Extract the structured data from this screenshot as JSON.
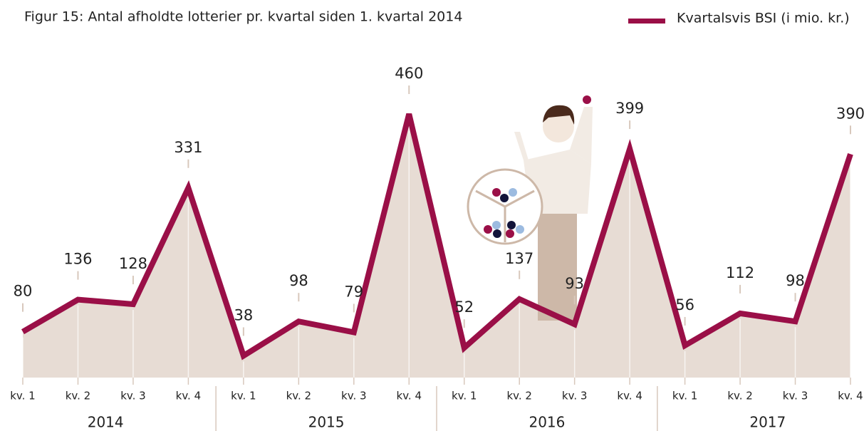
{
  "chart_data": {
    "type": "line",
    "title": "Figur 15: Antal afholdte lotterier pr. kvartal siden 1. kvartal 2014",
    "categories": [
      "kv. 1",
      "kv. 2",
      "kv. 3",
      "kv. 4",
      "kv. 1",
      "kv. 2",
      "kv. 3",
      "kv. 4",
      "kv. 1",
      "kv. 2",
      "kv. 3",
      "kv. 4",
      "kv. 1",
      "kv. 2",
      "kv. 3",
      "kv. 4"
    ],
    "groups": [
      "2014",
      "2015",
      "2016",
      "2017"
    ],
    "series": [
      {
        "name": "Kvartalsvis BSI (i mio. kr.)",
        "color": "#9a0f47",
        "values": [
          80,
          136,
          128,
          331,
          38,
          98,
          79,
          460,
          52,
          137,
          93,
          399,
          56,
          112,
          98,
          390
        ]
      }
    ],
    "area_color": "#e7dcd4"
  }
}
